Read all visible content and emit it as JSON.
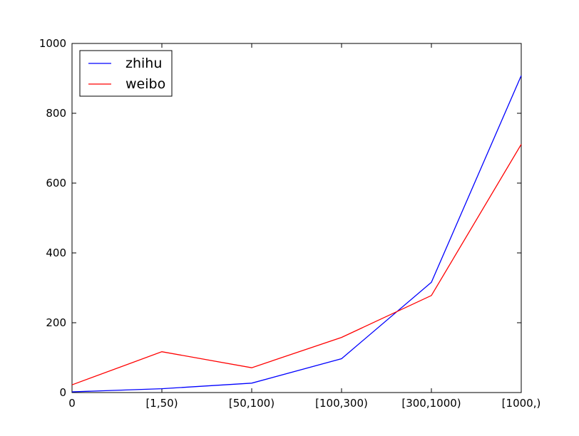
{
  "chart_data": {
    "type": "line",
    "categories": [
      "0",
      "[1,50)",
      "[50,100)",
      "[100,300)",
      "[300,1000)",
      "[1000,)"
    ],
    "series": [
      {
        "name": "zhihu",
        "color": "#0000ff",
        "values": [
          2,
          11,
          27,
          97,
          316,
          908
        ]
      },
      {
        "name": "weibo",
        "color": "#ff0000",
        "values": [
          22,
          117,
          71,
          158,
          278,
          711
        ]
      }
    ],
    "title": "",
    "xlabel": "",
    "ylabel": "",
    "ylim": [
      0,
      1000
    ],
    "yticks": [
      0,
      200,
      400,
      600,
      800,
      1000
    ],
    "grid": false,
    "legend_position": "top-left"
  }
}
